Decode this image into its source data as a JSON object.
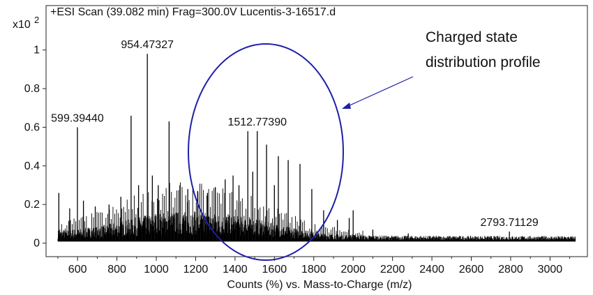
{
  "chart_data": {
    "type": "line",
    "title": "+ESI Scan (39.082 min) Frag=300.0V Lucentis-3-16517.d",
    "xlabel": "Counts (%) vs. Mass-to-Charge (m/z)",
    "ylabel": "",
    "y_multiplier": "x10",
    "y_multiplier_exp": "2",
    "xlim": [
      440,
      3190
    ],
    "ylim": [
      -0.07,
      1.23
    ],
    "x_ticks": [
      600,
      800,
      1000,
      1200,
      1400,
      1600,
      1800,
      2000,
      2200,
      2400,
      2600,
      2800,
      3000
    ],
    "y_ticks": [
      0,
      0.2,
      0.4,
      0.6,
      0.8,
      1
    ],
    "y_tick_labels": [
      "0",
      "0.2",
      "0.4",
      "0.6",
      "0.8",
      "1"
    ],
    "series": [
      {
        "peaks": [
          {
            "x": 505,
            "y": 0.26
          },
          {
            "x": 560,
            "y": 0.18
          },
          {
            "x": 599.4,
            "y": 0.6
          },
          {
            "x": 630,
            "y": 0.22
          },
          {
            "x": 690,
            "y": 0.19
          },
          {
            "x": 760,
            "y": 0.2
          },
          {
            "x": 820,
            "y": 0.24
          },
          {
            "x": 872,
            "y": 0.66
          },
          {
            "x": 910,
            "y": 0.3
          },
          {
            "x": 954.5,
            "y": 0.98
          },
          {
            "x": 980,
            "y": 0.35
          },
          {
            "x": 1010,
            "y": 0.3
          },
          {
            "x": 1065,
            "y": 0.63
          },
          {
            "x": 1120,
            "y": 0.3
          },
          {
            "x": 1160,
            "y": 0.28
          },
          {
            "x": 1210,
            "y": 0.27
          },
          {
            "x": 1260,
            "y": 0.26
          },
          {
            "x": 1300,
            "y": 0.29
          },
          {
            "x": 1350,
            "y": 0.33
          },
          {
            "x": 1390,
            "y": 0.35
          },
          {
            "x": 1420,
            "y": 0.3
          },
          {
            "x": 1465,
            "y": 0.58
          },
          {
            "x": 1490,
            "y": 0.37
          },
          {
            "x": 1512.8,
            "y": 0.58
          },
          {
            "x": 1560,
            "y": 0.51
          },
          {
            "x": 1600,
            "y": 0.3
          },
          {
            "x": 1620,
            "y": 0.45
          },
          {
            "x": 1670,
            "y": 0.43
          },
          {
            "x": 1730,
            "y": 0.41
          },
          {
            "x": 1790,
            "y": 0.28
          },
          {
            "x": 1850,
            "y": 0.17
          },
          {
            "x": 1920,
            "y": 0.12
          },
          {
            "x": 1980,
            "y": 0.13
          },
          {
            "x": 2000,
            "y": 0.17
          },
          {
            "x": 2100,
            "y": 0.07
          },
          {
            "x": 2280,
            "y": 0.05
          },
          {
            "x": 2793.7,
            "y": 0.06
          }
        ]
      }
    ],
    "peak_labels": [
      {
        "text": "954.47327",
        "x": 954.5,
        "y": 0.98
      },
      {
        "text": "599.39440",
        "x": 599.4,
        "y": 0.6
      },
      {
        "text": "1512.77390",
        "x": 1512.8,
        "y": 0.58
      },
      {
        "text": "2793.71129",
        "x": 2793.7,
        "y": 0.06
      }
    ],
    "annotation": {
      "lines": [
        "Charged state",
        "distribution profile"
      ],
      "ellipse_color": "#1f1fa8",
      "arrow_color": "#1f1fa8"
    },
    "line_color": "#000000",
    "grid": false
  }
}
